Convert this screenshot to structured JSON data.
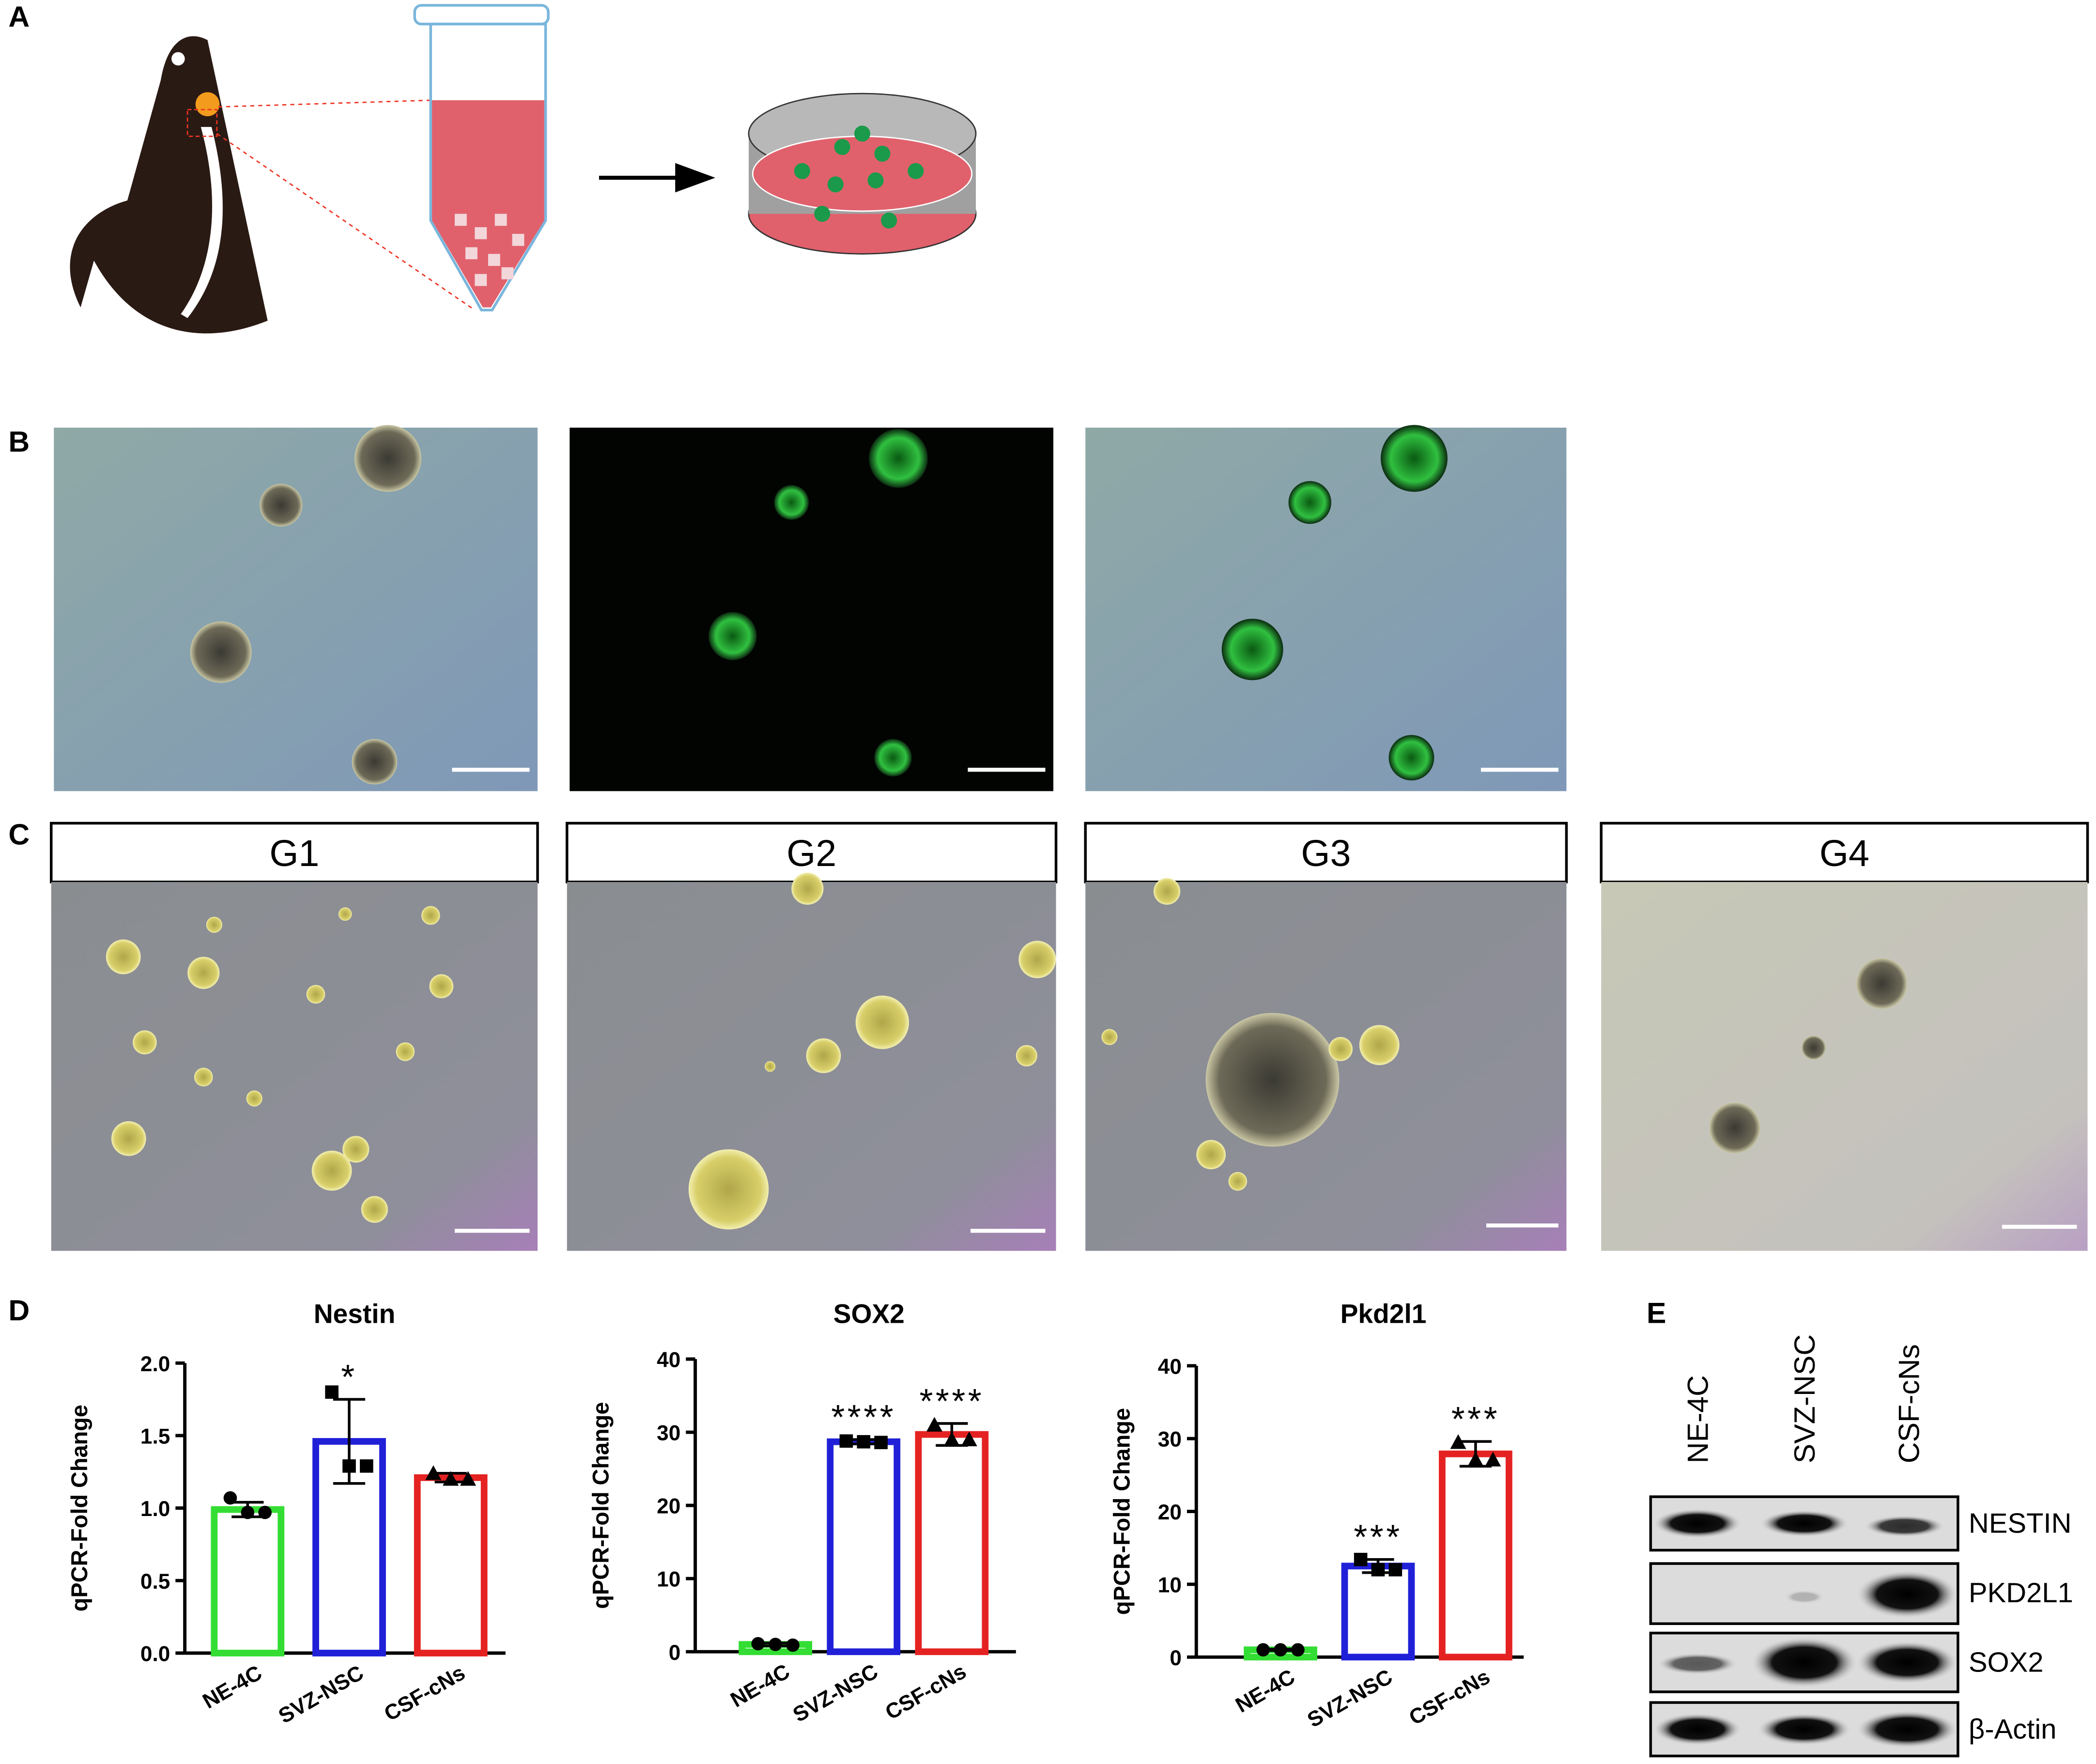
{
  "panel_labels": [
    "A",
    "B",
    "C",
    "D",
    "E"
  ],
  "groups": [
    "G1",
    "G2",
    "G3",
    "G4"
  ],
  "chart_data": [
    {
      "type": "bar",
      "title": "Nestin",
      "y_label": "qPCR-Fold Change",
      "categories": [
        "NE-4C",
        "SVZ-NSC",
        "CSF-cNs"
      ],
      "values": [
        0.99,
        1.46,
        1.21
      ],
      "errors": [
        0.05,
        0.29,
        0.03
      ],
      "points": [
        [
          1.07,
          0.97,
          0.97
        ],
        [
          1.8,
          1.29,
          1.29
        ],
        [
          1.24,
          1.2,
          1.2
        ]
      ],
      "colors": [
        "#33dd33",
        "#2020d8",
        "#e52222"
      ],
      "annotations": [
        null,
        "*",
        null
      ],
      "ylim": [
        0,
        2
      ],
      "yticks": [
        {
          "value": 0,
          "label": "0.0"
        },
        0.5,
        {
          "value": 1,
          "label": "1.0"
        },
        1.5,
        {
          "value": 2,
          "label": "2.0"
        }
      ]
    },
    {
      "type": "bar",
      "title": "SOX2",
      "y_label": "qPCR-Fold Change",
      "categories": [
        "NE-4C",
        "SVZ-NSC",
        "CSF-cNs"
      ],
      "values": [
        1,
        28.7,
        29.7
      ],
      "errors": [
        0.2,
        0.3,
        1.5
      ],
      "points": [
        [
          1.1,
          1,
          0.9
        ],
        [
          28.8,
          28.7,
          28.6
        ],
        [
          31,
          29,
          29
        ]
      ],
      "colors": [
        "#33dd33",
        "#2020d8",
        "#e52222"
      ],
      "annotations": [
        null,
        "****",
        "****"
      ],
      "ylim": [
        0,
        40
      ],
      "yticks": [
        0,
        10,
        20,
        30,
        40
      ]
    },
    {
      "type": "bar",
      "title": "Pkd2l1",
      "y_label": "qPCR-Fold Change",
      "categories": [
        "NE-4C",
        "SVZ-NSC",
        "CSF-cNs"
      ],
      "values": [
        1,
        12.5,
        27.9
      ],
      "errors": [
        0.1,
        0.9,
        1.7
      ],
      "points": [
        [
          1,
          1,
          1
        ],
        [
          13.4,
          12,
          12
        ],
        [
          29.5,
          27.1,
          27.1
        ]
      ],
      "colors": [
        "#33dd33",
        "#2020d8",
        "#e52222"
      ],
      "annotations": [
        null,
        "***",
        "***"
      ],
      "ylim": [
        0,
        40
      ],
      "yticks": [
        0,
        10,
        20,
        30,
        40
      ]
    }
  ],
  "blot": {
    "lanes": [
      "NE-4C",
      "SVZ-NSC",
      "CSF-cNs"
    ],
    "proteins": [
      "NESTIN",
      "PKD2L1",
      "SOX2",
      "β-Actin"
    ]
  }
}
